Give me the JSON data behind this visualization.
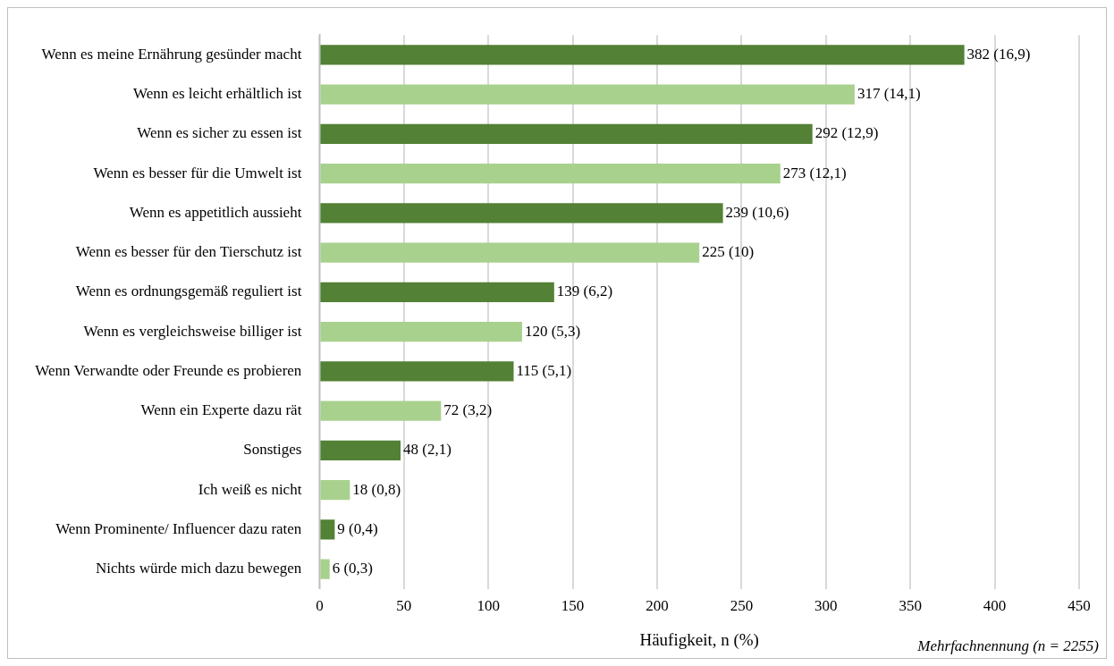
{
  "chart_data": {
    "type": "bar",
    "orientation": "horizontal",
    "xlabel": "Häufigkeit, n (%)",
    "categories": [
      "Wenn es meine Ernährung gesünder macht",
      "Wenn es leicht erhältlich ist",
      "Wenn es sicher zu essen ist",
      "Wenn es besser für die Umwelt ist",
      "Wenn es appetitlich aussieht",
      "Wenn es besser für den Tierschutz ist",
      "Wenn es ordnungsgemäß reguliert ist",
      "Wenn es vergleichsweise billiger ist",
      "Wenn Verwandte oder Freunde es probieren",
      "Wenn ein Experte dazu rät",
      "Sonstiges",
      "Ich weiß es nicht",
      "Wenn Prominente/ Influencer dazu raten",
      "Nichts würde mich dazu bewegen"
    ],
    "values": [
      382,
      317,
      292,
      273,
      239,
      225,
      139,
      120,
      115,
      72,
      48,
      18,
      9,
      6
    ],
    "value_labels": [
      "382 (16,9)",
      "317 (14,1)",
      "292 (12,9)",
      "273 (12,1)",
      "239 (10,6)",
      "225 (10)",
      "139 (6,2)",
      "120 (5,3)",
      "115 (5,1)",
      "72 (3,2)",
      "48 (2,1)",
      "18 (0,8)",
      "9 (0,4)",
      "6 (0,3)"
    ],
    "colors": [
      "#538135",
      "#a9d18e",
      "#538135",
      "#a9d18e",
      "#538135",
      "#a9d18e",
      "#538135",
      "#a9d18e",
      "#538135",
      "#a9d18e",
      "#538135",
      "#a9d18e",
      "#538135",
      "#a9d18e"
    ],
    "xlim": [
      0,
      450
    ],
    "xticks": [
      0,
      50,
      100,
      150,
      200,
      250,
      300,
      350,
      400,
      450
    ],
    "grid": "x",
    "legend": false,
    "annotations": [
      "Mehrfachnennung (n = 2255)"
    ]
  }
}
